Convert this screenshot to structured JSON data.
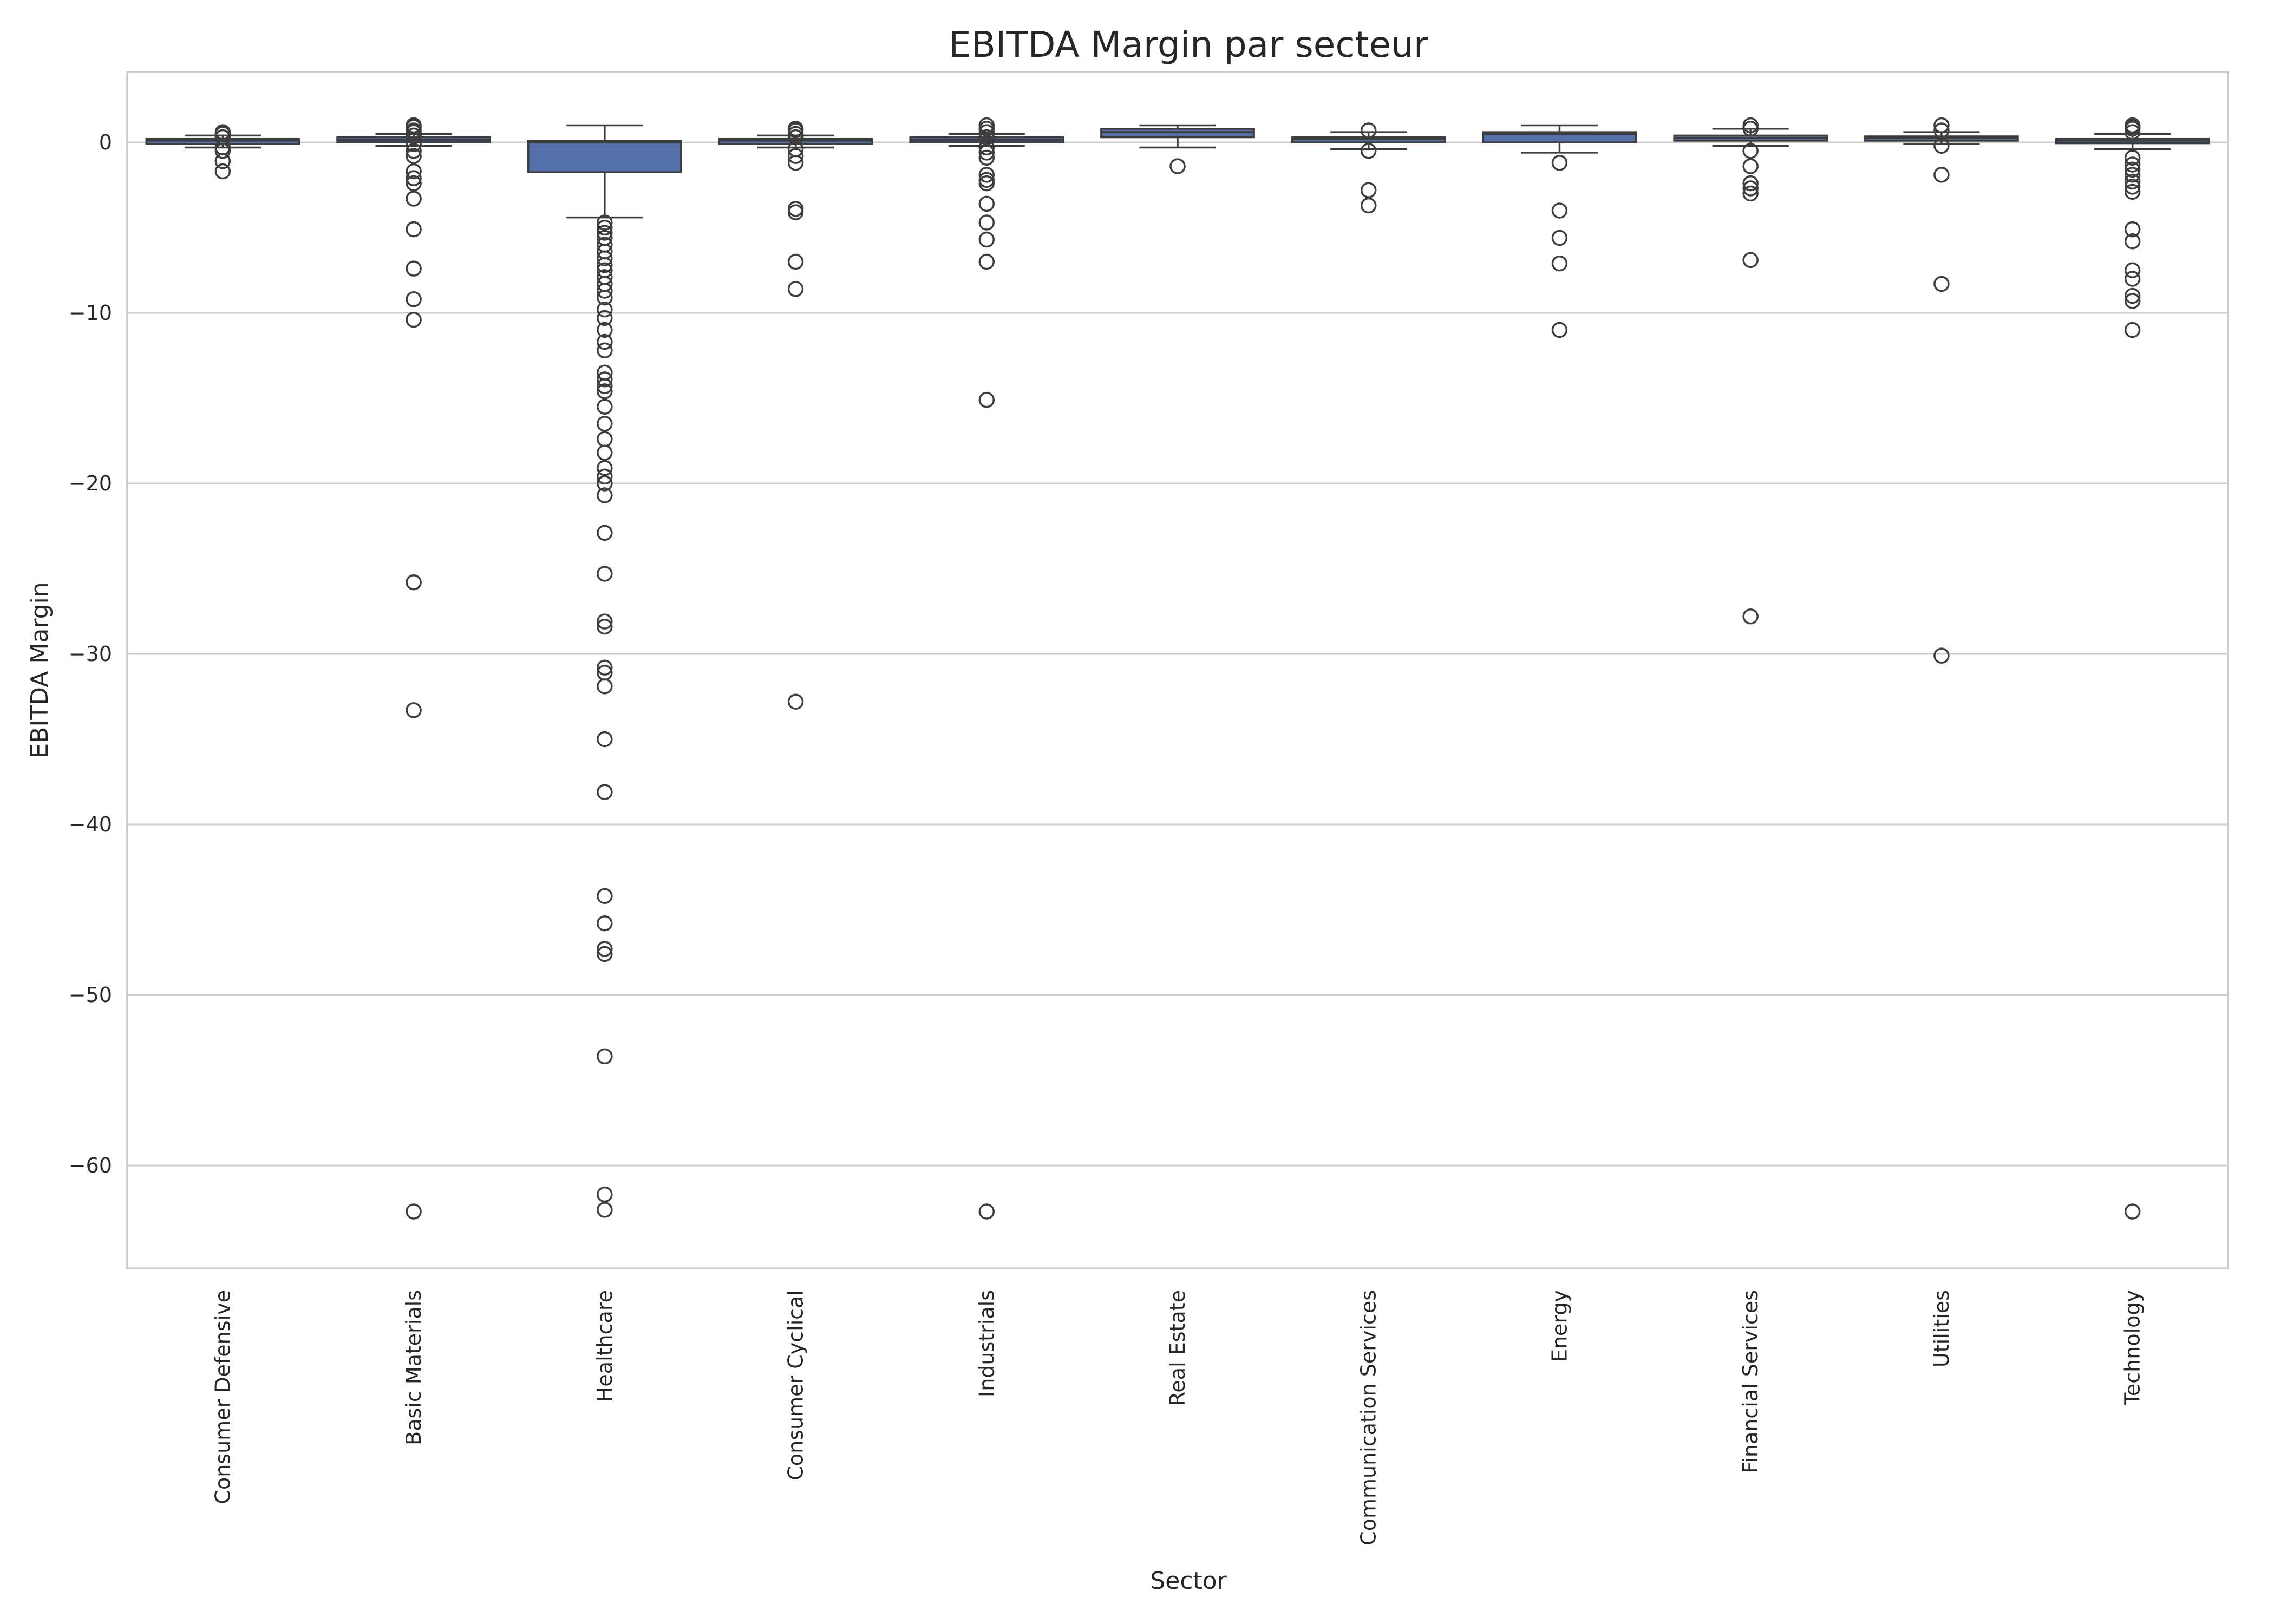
{
  "chart_data": {
    "type": "box",
    "title": "EBITDA Margin par secteur",
    "xlabel": "Sector",
    "ylabel": "EBITDA Margin",
    "ylim": [
      -66,
      4.2
    ],
    "yticks": [
      0,
      -10,
      -20,
      -30,
      -40,
      -50,
      -60
    ],
    "ytick_labels": [
      "0",
      "−10",
      "−20",
      "−30",
      "−40",
      "−50",
      "−60"
    ],
    "grid": "horizontal",
    "box_color": "#5470a8",
    "categories": [
      "Consumer Defensive",
      "Basic Materials",
      "Healthcare",
      "Consumer Cyclical",
      "Industrials",
      "Real Estate",
      "Communication Services",
      "Energy",
      "Financial Services",
      "Utilities",
      "Technology"
    ],
    "boxes": [
      {
        "q1": -0.1,
        "median": 0.1,
        "q3": 0.2,
        "whisker_low": -0.3,
        "whisker_high": 0.4,
        "outliers": [
          0.6,
          0.5,
          0.3,
          -0.3,
          -0.5,
          -1.1,
          -1.7
        ]
      },
      {
        "q1": 0.0,
        "median": 0.15,
        "q3": 0.3,
        "whisker_low": -0.2,
        "whisker_high": 0.5,
        "outliers": [
          1.0,
          0.9,
          0.7,
          0.6,
          0.4,
          -0.1,
          -0.5,
          -0.8,
          -1.7,
          -2.1,
          -2.4,
          -3.3,
          -5.1,
          -7.4,
          -9.2,
          -10.4,
          -25.8,
          -33.3,
          -62.7
        ]
      },
      {
        "q1": -1.75,
        "median": 0.0,
        "q3": 0.1,
        "whisker_low": -4.4,
        "whisker_high": 1.0,
        "outliers": [
          -4.7,
          -5.0,
          -5.3,
          -5.6,
          -6.0,
          -6.4,
          -6.8,
          -7.2,
          -7.5,
          -7.9,
          -8.3,
          -8.7,
          -9.1,
          -9.8,
          -10.3,
          -11.0,
          -11.7,
          -12.2,
          -13.5,
          -13.9,
          -14.3,
          -14.6,
          -15.5,
          -16.5,
          -17.4,
          -18.2,
          -19.1,
          -19.6,
          -20.0,
          -20.7,
          -22.9,
          -25.3,
          -28.1,
          -28.4,
          -30.8,
          -31.1,
          -31.9,
          -35.0,
          -38.1,
          -44.2,
          -45.8,
          -47.3,
          -47.6,
          -53.6,
          -61.7,
          -62.6
        ]
      },
      {
        "q1": -0.1,
        "median": 0.1,
        "q3": 0.2,
        "whisker_low": -0.3,
        "whisker_high": 0.4,
        "outliers": [
          0.8,
          0.7,
          0.5,
          0.3,
          -0.4,
          -0.8,
          -1.2,
          -3.9,
          -4.1,
          -7.0,
          -8.6,
          -32.8
        ]
      },
      {
        "q1": 0.0,
        "median": 0.15,
        "q3": 0.3,
        "whisker_low": -0.2,
        "whisker_high": 0.5,
        "outliers": [
          1.0,
          0.8,
          0.6,
          0.3,
          -0.3,
          -0.6,
          -0.9,
          -1.9,
          -2.2,
          -2.4,
          -3.6,
          -4.7,
          -5.7,
          -7.0,
          -15.1,
          -62.7
        ]
      },
      {
        "q1": 0.3,
        "median": 0.6,
        "q3": 0.8,
        "whisker_low": -0.3,
        "whisker_high": 1.0,
        "outliers": [
          -1.4
        ]
      },
      {
        "q1": 0.0,
        "median": 0.2,
        "q3": 0.3,
        "whisker_low": -0.4,
        "whisker_high": 0.6,
        "outliers": [
          0.7,
          -0.5,
          -2.8,
          -3.7
        ]
      },
      {
        "q1": 0.0,
        "median": 0.5,
        "q3": 0.6,
        "whisker_low": -0.6,
        "whisker_high": 1.0,
        "outliers": [
          -1.2,
          -4.0,
          -5.6,
          -7.1,
          -11.0
        ]
      },
      {
        "q1": 0.1,
        "median": 0.25,
        "q3": 0.4,
        "whisker_low": -0.2,
        "whisker_high": 0.8,
        "outliers": [
          1.0,
          0.8,
          -0.5,
          -1.4,
          -2.4,
          -2.7,
          -3.0,
          -6.9,
          -27.8
        ]
      },
      {
        "q1": 0.1,
        "median": 0.25,
        "q3": 0.35,
        "whisker_low": -0.1,
        "whisker_high": 0.6,
        "outliers": [
          1.0,
          0.7,
          -0.2,
          -1.9,
          -8.3,
          -30.1
        ]
      },
      {
        "q1": -0.05,
        "median": 0.1,
        "q3": 0.2,
        "whisker_low": -0.4,
        "whisker_high": 0.5,
        "outliers": [
          1.0,
          0.9,
          0.8,
          0.6,
          -0.9,
          -1.3,
          -1.6,
          -1.9,
          -2.3,
          -2.6,
          -2.9,
          -5.1,
          -5.8,
          -7.5,
          -8.0,
          -9.0,
          -9.3,
          -11.0,
          -62.7
        ]
      }
    ]
  }
}
